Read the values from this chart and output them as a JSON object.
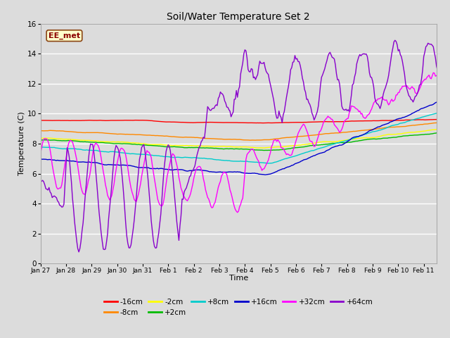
{
  "title": "Soil/Water Temperature Set 2",
  "xlabel": "Time",
  "ylabel": "Temperature (C)",
  "ylim": [
    0,
    16
  ],
  "bg_color": "#dcdcdc",
  "grid_color": "#ffffff",
  "annotation_text": "EE_met",
  "annotation_bg": "#ffffcc",
  "annotation_border": "#8b4513",
  "x_tick_labels": [
    "Jan 27",
    "Jan 28",
    "Jan 29",
    "Jan 30",
    "Jan 31",
    "Feb 1",
    "Feb 2",
    "Feb 3",
    "Feb 4",
    "Feb 5",
    "Feb 6",
    "Feb 7",
    "Feb 8",
    "Feb 9",
    "Feb 10",
    "Feb 11"
  ],
  "series_colors": {
    "-16cm": "#ff0000",
    "-8cm": "#ff8800",
    "-2cm": "#ffff00",
    "+2cm": "#00bb00",
    "+8cm": "#00cccc",
    "+16cm": "#0000cc",
    "+32cm": "#ff00ff",
    "+64cm": "#8800cc"
  },
  "legend_order": [
    "-16cm",
    "-8cm",
    "-2cm",
    "+2cm",
    "+8cm",
    "+16cm",
    "+32cm",
    "+64cm"
  ]
}
